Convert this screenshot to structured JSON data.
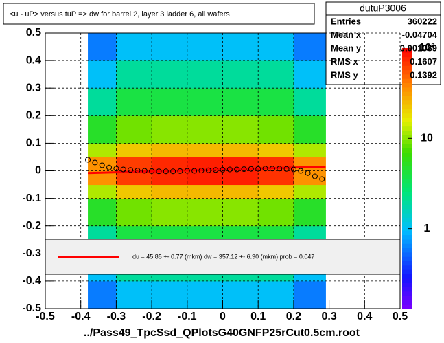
{
  "chart_data": {
    "type": "heatmap",
    "title": "<u - uP>       versus  tuP =>  dw for barrel 2, layer 3 ladder 6, all wafers",
    "x_label": "../Pass49_TpcSsd_QPlotsG40GNFP25rCut0.5cm.root",
    "xlim": [
      -0.5,
      0.5
    ],
    "xticks": [
      -0.5,
      -0.4,
      -0.3,
      -0.2,
      -0.1,
      0,
      0.1,
      0.2,
      0.3,
      0.4,
      0.5
    ],
    "ylim": [
      -0.5,
      0.5
    ],
    "yticks": [
      -0.5,
      -0.4,
      -0.3,
      -0.2,
      -0.1,
      0,
      0.1,
      0.2,
      0.3,
      0.4,
      0.5
    ],
    "grid": true,
    "zlim": [
      0.13,
      100
    ],
    "zlog": true,
    "zticks": [
      1,
      10,
      {
        "value": 100,
        "label": "10²"
      }
    ],
    "heatmap": {
      "x_edges": [
        -0.38,
        -0.3,
        -0.2,
        -0.1,
        0,
        0.1,
        0.2,
        0.29
      ],
      "y_edges": [
        -0.5,
        -0.4,
        -0.3,
        -0.2,
        -0.1,
        -0.05,
        0.05,
        0.1,
        0.2,
        0.3,
        0.4,
        0.5
      ],
      "counts": [
        [
          0.6,
          1,
          1,
          1,
          1,
          1,
          0.6
        ],
        [
          1,
          2,
          2,
          2,
          2,
          2,
          1
        ],
        [
          2,
          4,
          4,
          4,
          4,
          4,
          2
        ],
        [
          5,
          9,
          10,
          10,
          10,
          9,
          5
        ],
        [
          12,
          22,
          25,
          25,
          25,
          22,
          12
        ],
        [
          35,
          65,
          75,
          80,
          80,
          70,
          35
        ],
        [
          12,
          22,
          25,
          25,
          25,
          22,
          12
        ],
        [
          5,
          9,
          10,
          10,
          10,
          9,
          5
        ],
        [
          2,
          4,
          4,
          4,
          4,
          4,
          2
        ],
        [
          1,
          2,
          2,
          2,
          2,
          2,
          1
        ],
        [
          0.6,
          1,
          1,
          1,
          1,
          1,
          0.6
        ]
      ]
    },
    "profile": {
      "color": "#000000",
      "x": [
        -0.38,
        -0.36,
        -0.34,
        -0.32,
        -0.3,
        -0.28,
        -0.26,
        -0.24,
        -0.22,
        -0.2,
        -0.18,
        -0.16,
        -0.14,
        -0.12,
        -0.1,
        -0.08,
        -0.06,
        -0.04,
        -0.02,
        0,
        0.02,
        0.04,
        0.06,
        0.08,
        0.1,
        0.12,
        0.14,
        0.16,
        0.18,
        0.2,
        0.22,
        0.24,
        0.26,
        0.28
      ],
      "values": [
        0.04,
        0.03,
        0.02,
        0.012,
        0.008,
        0.005,
        0.003,
        0.001,
        0,
        -0.001,
        -0.002,
        -0.002,
        -0.002,
        -0.001,
        0,
        0,
        0.001,
        0.002,
        0.003,
        0.004,
        0.005,
        0.005,
        0.006,
        0.007,
        0.007,
        0.008,
        0.008,
        0.008,
        0.007,
        0.005,
        0,
        -0.008,
        -0.02,
        -0.03
      ]
    },
    "fit": {
      "color": "#ff0000",
      "x": [
        -0.38,
        0.29
      ],
      "values": [
        -0.008,
        0.015
      ],
      "label": "du =   45.85 +-  0.77 (mkm) dw =  357.12 +-  6.90 (mkm) prob = 0.047"
    },
    "stats": {
      "name": "dutuP3006",
      "rows": [
        [
          "Entries",
          360222
        ],
        [
          "Mean x",
          -0.04704
        ],
        [
          "Mean y",
          0.001089
        ],
        [
          "RMS x",
          0.1607
        ],
        [
          "RMS y",
          0.1392
        ]
      ]
    }
  }
}
